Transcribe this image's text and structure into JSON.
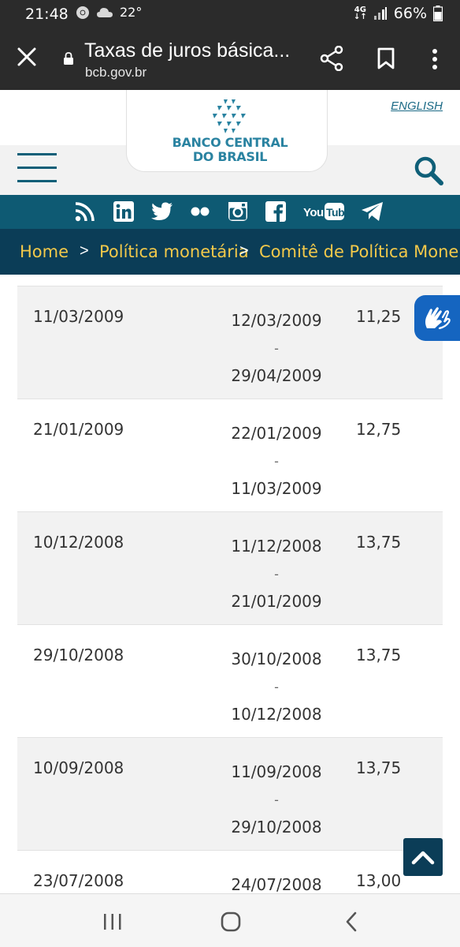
{
  "status_bar": {
    "time": "21:48",
    "temperature": "22°",
    "network": "4G",
    "battery": "66%"
  },
  "browser": {
    "page_title": "Taxas de juros básica...",
    "url": "bcb.gov.br"
  },
  "site_header": {
    "logo_line1": "BANCO CENTRAL",
    "logo_line2": "DO BRASIL",
    "language_link": "ENGLISH",
    "brand_color": "#2a83a1"
  },
  "social": {
    "icons": [
      "rss-icon",
      "linkedin-icon",
      "twitter-icon",
      "flickr-icon",
      "instagram-icon",
      "facebook-icon",
      "youtube-icon",
      "telegram-icon"
    ],
    "youtube_label": "YouTube"
  },
  "breadcrumb": {
    "items": [
      "Home",
      "Política monetária",
      "Comitê de Política Mone"
    ],
    "separator": ">"
  },
  "table": {
    "rows": [
      {
        "meeting": "11/03/2009",
        "start": "12/03/2009",
        "end": "29/04/2009",
        "rate": "11,25"
      },
      {
        "meeting": "21/01/2009",
        "start": "22/01/2009",
        "end": "11/03/2009",
        "rate": "12,75"
      },
      {
        "meeting": "10/12/2008",
        "start": "11/12/2008",
        "end": "21/01/2009",
        "rate": "13,75"
      },
      {
        "meeting": "29/10/2008",
        "start": "30/10/2008",
        "end": "10/12/2008",
        "rate": "13,75"
      },
      {
        "meeting": "10/09/2008",
        "start": "11/09/2008",
        "end": "29/10/2008",
        "rate": "13,75"
      },
      {
        "meeting": "23/07/2008",
        "start": "24/07/2008",
        "end": "",
        "rate": "13,00"
      }
    ],
    "dash": "-"
  },
  "colors": {
    "dark_bar": "#2b2b2b",
    "social_bar": "#0e5a73",
    "breadcrumb_bg": "#0b3d57",
    "breadcrumb_text": "#f3c94a",
    "a11y": "#1565c0"
  }
}
